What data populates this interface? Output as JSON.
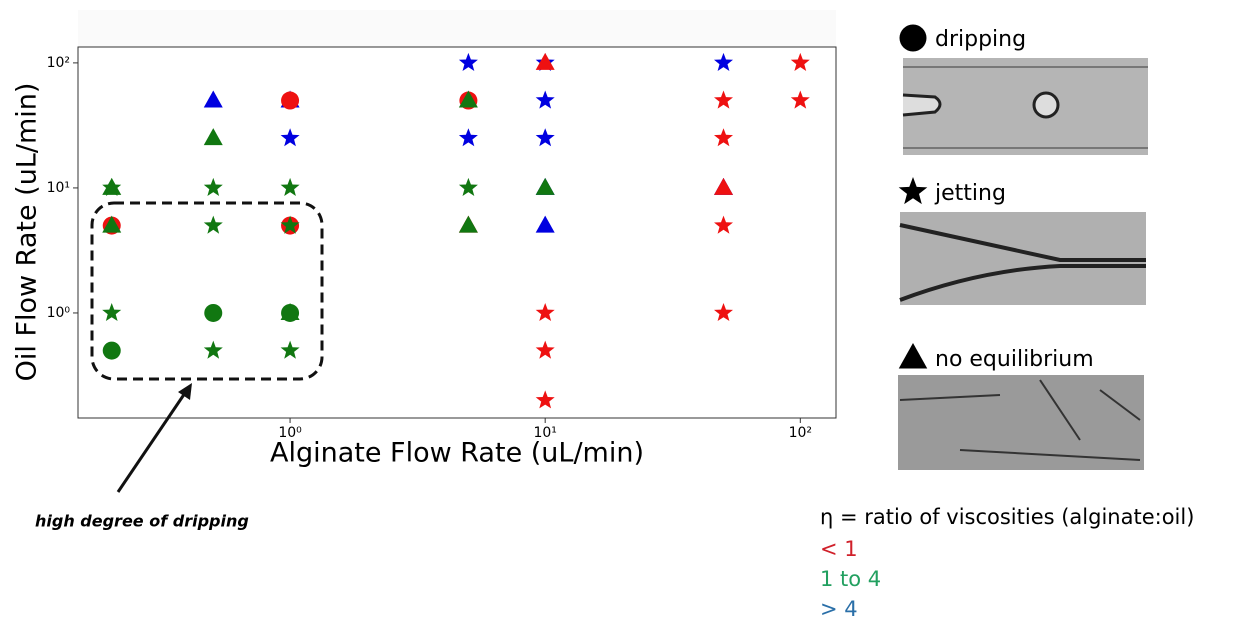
{
  "chart_data": {
    "type": "scatter",
    "x_label": "Alginate Flow Rate (uL/min)",
    "y_label": "Oil Flow Rate (uL/min)",
    "log_x": true,
    "log_y": true,
    "xlim": [
      0.1475,
      138
    ],
    "ylim": [
      0.1445,
      134
    ],
    "xticks": [
      {
        "value": 1,
        "label": "10⁰"
      },
      {
        "value": 10,
        "label": "10¹"
      },
      {
        "value": 100,
        "label": "10²"
      }
    ],
    "yticks": [
      {
        "value": 1,
        "label": "10⁰"
      },
      {
        "value": 10,
        "label": "10¹"
      },
      {
        "value": 100,
        "label": "10²"
      }
    ],
    "series": [
      {
        "color": "#0000e0",
        "marker": "triangle",
        "x": [
          0.5,
          1,
          10,
          10,
          50
        ],
        "values": [
          50,
          50,
          10,
          5,
          10
        ]
      },
      {
        "color": "#0000e0",
        "marker": "star",
        "x": [
          1,
          5,
          5,
          10,
          10,
          10,
          50
        ],
        "values": [
          25,
          100,
          25,
          100,
          50,
          25,
          100
        ]
      },
      {
        "color": "#ee1111",
        "marker": "circle",
        "x": [
          0.2,
          1,
          1,
          5
        ],
        "values": [
          5,
          50,
          5,
          50
        ]
      },
      {
        "color": "#ee1111",
        "marker": "star",
        "x": [
          10,
          10,
          10,
          50,
          50,
          50,
          50,
          100,
          100
        ],
        "values": [
          1,
          0.5,
          0.2,
          50,
          25,
          5,
          1,
          100,
          50
        ]
      },
      {
        "color": "#ee1111",
        "marker": "triangle",
        "x": [
          10,
          5,
          50
        ],
        "values": [
          100,
          5,
          10
        ]
      },
      {
        "color": "#117711",
        "marker": "circle",
        "x": [
          0.2,
          0.5,
          1
        ],
        "values": [
          0.5,
          1,
          1
        ]
      },
      {
        "color": "#117711",
        "marker": "triangle",
        "x": [
          0.2,
          0.2,
          0.5,
          1,
          5,
          5,
          10
        ],
        "values": [
          10,
          5,
          25,
          1,
          50,
          5,
          10
        ]
      },
      {
        "color": "#117711",
        "marker": "star",
        "x": [
          0.2,
          0.2,
          0.5,
          0.5,
          0.5,
          1,
          1,
          1,
          5
        ],
        "values": [
          10,
          1,
          10,
          5,
          0.5,
          10,
          5,
          0.5,
          10
        ]
      }
    ],
    "annotation": "high degree of dripping",
    "marker_legend": [
      {
        "marker": "circle",
        "label": "dripping"
      },
      {
        "marker": "star",
        "label": "jetting"
      },
      {
        "marker": "triangle",
        "label": "no equilibrium"
      }
    ],
    "color_legend": {
      "title": "η = ratio of viscosities (alginate:oil)",
      "entries": [
        {
          "label": "< 1",
          "color": "#d0202a"
        },
        {
          "label": "1 to 4",
          "color": "#22a060"
        },
        {
          "label": "> 4",
          "color": "#2a6fa8"
        }
      ]
    }
  }
}
